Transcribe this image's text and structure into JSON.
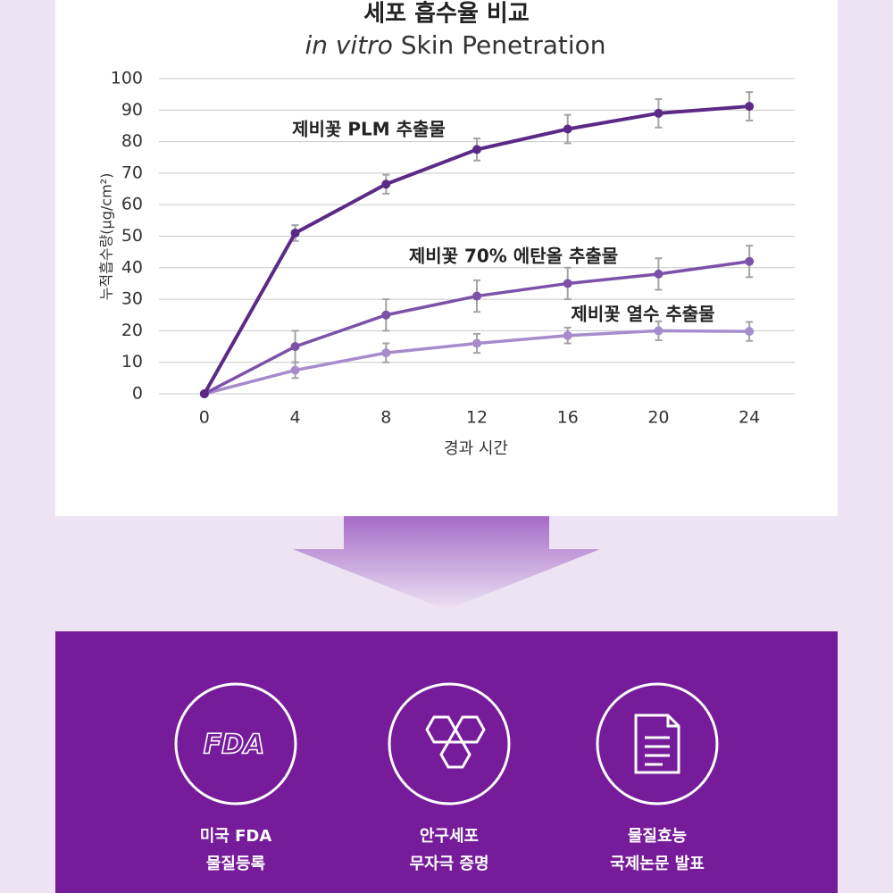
{
  "chart_data": {
    "type": "line",
    "title": "세포 흡수율 비교",
    "subtitle_italic": "in vitro",
    "subtitle": "Skin Penetration",
    "y_label": "누적흡수량(μg/cm²)",
    "x_label": "경과 시간",
    "x": [
      0,
      4,
      8,
      12,
      16,
      20,
      24
    ],
    "xlim": [
      -2,
      26
    ],
    "xticks": [
      0,
      4,
      8,
      12,
      16,
      20,
      24
    ],
    "ylim": [
      0,
      100
    ],
    "yticks": [
      0,
      10,
      20,
      30,
      40,
      50,
      60,
      70,
      80,
      90,
      100
    ],
    "grid": true,
    "series": [
      {
        "name": "제비꽃 PLM 추출물",
        "color": "#5b2a86",
        "values": [
          0,
          51,
          66.5,
          77.5,
          84,
          89,
          91.2
        ],
        "errors": [
          0,
          2.5,
          3,
          3.5,
          4.5,
          4.5,
          4.5
        ]
      },
      {
        "name": "제비꽃 70% 에탄올 추출물",
        "color": "#7c52a8",
        "values": [
          0,
          15,
          25,
          31,
          35,
          38,
          42
        ],
        "errors": [
          0,
          5,
          5,
          5,
          5,
          5,
          5
        ]
      },
      {
        "name": "제비꽃 열수 추출물",
        "color": "#a68ccb",
        "values": [
          0,
          7.5,
          13,
          16,
          18.5,
          20,
          19.8
        ],
        "errors": [
          0,
          2.5,
          3,
          3,
          2.5,
          3,
          3
        ]
      }
    ]
  },
  "features": [
    {
      "icon_text": "FDA",
      "lines": [
        "미국 FDA",
        "물질등록"
      ]
    },
    {
      "lines": [
        "안구세포",
        "무자극 증명"
      ]
    },
    {
      "lines": [
        "물질효능",
        "국제논문 발표"
      ]
    }
  ]
}
